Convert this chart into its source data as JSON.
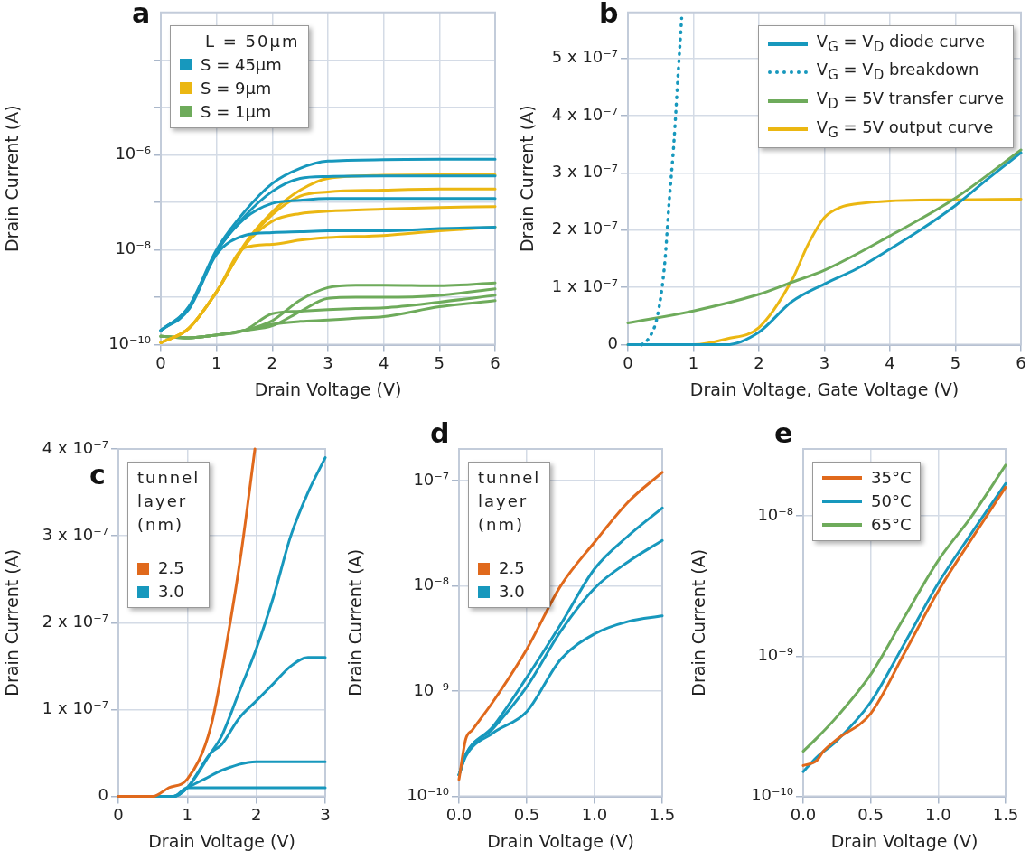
{
  "chart_data": [
    {
      "type": "line",
      "title": "a",
      "xlabel": "Drain Voltage (V)",
      "ylabel": "Drain Current (A)",
      "log": "y",
      "grid": true,
      "legend": "top left",
      "legend_title": "L = 50µm",
      "xlim": [
        0,
        6
      ],
      "xticks": [
        0,
        1,
        2,
        3,
        4,
        5,
        6
      ],
      "ylim": [
        1e-10,
        0.001
      ],
      "yticks": [
        {
          "value": 1e-10,
          "label": "10⁻¹⁰"
        },
        {
          "value": 1e-09,
          "label": null
        },
        {
          "value": 1e-08,
          "label": "10⁻⁸"
        },
        {
          "value": 1e-07,
          "label": null
        },
        {
          "value": 1e-06,
          "label": "10⁻⁶"
        },
        {
          "value": 1e-05,
          "label": null
        },
        {
          "value": 0.0001,
          "label": null
        }
      ],
      "series": [
        {
          "name": "S = 45µm",
          "color": "#1798bd",
          "x": [
            0,
            0.5,
            1,
            1.5,
            2,
            2.5,
            3,
            4,
            5,
            6
          ],
          "values": [
            2e-10,
            6.3e-10,
            1e-08,
            6.3e-08,
            2.5e-07,
            5.2e-07,
            7.4e-07,
            7.9e-07,
            8.1e-07,
            8.1e-07
          ]
        },
        {
          "color": "#1798bd",
          "x": [
            0,
            0.5,
            1,
            1.5,
            2,
            2.5,
            3,
            4,
            5,
            6
          ],
          "values": [
            2e-10,
            6e-10,
            9e-09,
            5e-08,
            1.7e-07,
            3.2e-07,
            3.5e-07,
            3.6e-07,
            3.6e-07,
            3.6e-07
          ]
        },
        {
          "color": "#1798bd",
          "x": [
            0,
            0.5,
            1,
            1.5,
            2,
            2.5,
            3,
            4,
            5,
            6
          ],
          "values": [
            2e-10,
            6e-10,
            9e-09,
            4.5e-08,
            9.5e-08,
            1.1e-07,
            1.2e-07,
            1.2e-07,
            1.2e-07,
            1.2e-07
          ]
        },
        {
          "color": "#1798bd",
          "x": [
            0,
            0.5,
            1,
            1.5,
            2,
            2.5,
            3,
            4,
            5,
            6
          ],
          "values": [
            2e-10,
            5.5e-10,
            8e-09,
            2e-08,
            2.3e-08,
            2.4e-08,
            2.5e-08,
            2.5e-08,
            2.8e-08,
            3e-08
          ]
        },
        {
          "name": "S = 9µm",
          "color": "#ebb712",
          "x": [
            0,
            0.5,
            1,
            1.5,
            2,
            2.5,
            3,
            4,
            5,
            6
          ],
          "values": [
            1.1e-10,
            2.2e-10,
            1.3e-09,
            1.3e-08,
            6.3e-08,
            1.8e-07,
            3.2e-07,
            3.7e-07,
            3.8e-07,
            3.8e-07
          ]
        },
        {
          "color": "#ebb712",
          "x": [
            0,
            0.5,
            1,
            1.5,
            2,
            2.5,
            3,
            4,
            5,
            6
          ],
          "values": [
            1.1e-10,
            2.2e-10,
            1.3e-09,
            1.2e-08,
            5.5e-08,
            1.35e-07,
            1.65e-07,
            1.8e-07,
            1.9e-07,
            1.9e-07
          ]
        },
        {
          "color": "#ebb712",
          "x": [
            0,
            0.5,
            1,
            1.5,
            2,
            2.5,
            3,
            4,
            5,
            6
          ],
          "values": [
            1.1e-10,
            2.2e-10,
            1.3e-09,
            1.2e-08,
            4e-08,
            5.8e-08,
            6.5e-08,
            7.2e-08,
            7.8e-08,
            8.1e-08
          ]
        },
        {
          "color": "#ebb712",
          "x": [
            0,
            0.5,
            1,
            1.5,
            2,
            2.5,
            3,
            4,
            5,
            6
          ],
          "values": [
            1.1e-10,
            2.2e-10,
            1.3e-09,
            1.1e-08,
            1.3e-08,
            1.6e-08,
            1.8e-08,
            2e-08,
            2.5e-08,
            3e-08
          ]
        },
        {
          "name": "S = 1µm",
          "color": "#6eab5b",
          "x": [
            0,
            0.5,
            1,
            1.5,
            2,
            2.5,
            3,
            3.5,
            4,
            5,
            6
          ],
          "values": [
            1.5e-10,
            1.4e-10,
            1.6e-10,
            2e-10,
            3.2e-10,
            8.7e-10,
            1.6e-09,
            1.8e-09,
            1.8e-09,
            1.75e-09,
            2e-09
          ]
        },
        {
          "color": "#6eab5b",
          "x": [
            0,
            0.5,
            1,
            1.5,
            2,
            2.5,
            3,
            3.5,
            4,
            5,
            6
          ],
          "values": [
            1.5e-10,
            1.4e-10,
            1.6e-10,
            2e-10,
            2.5e-10,
            5e-10,
            9.5e-10,
            1e-09,
            1e-09,
            1.1e-09,
            1.5e-09
          ]
        },
        {
          "color": "#6eab5b",
          "x": [
            0,
            0.5,
            1,
            1.5,
            2,
            2.5,
            3,
            3.5,
            4,
            5,
            6
          ],
          "values": [
            1.5e-10,
            1.4e-10,
            1.6e-10,
            2e-10,
            4.5e-10,
            5.1e-10,
            5.5e-10,
            5.8e-10,
            6e-10,
            7.9e-10,
            1.1e-09
          ]
        },
        {
          "color": "#6eab5b",
          "x": [
            0,
            0.5,
            1,
            1.5,
            2,
            2.5,
            3,
            3.5,
            4,
            5,
            6
          ],
          "values": [
            1.5e-10,
            1.4e-10,
            1.6e-10,
            2e-10,
            2.7e-10,
            3.1e-10,
            3.3e-10,
            3.6e-10,
            3.9e-10,
            6.3e-10,
            8.5e-10
          ]
        }
      ]
    },
    {
      "type": "line",
      "title": "b",
      "xlabel": "Drain Voltage, Gate Voltage (V)",
      "ylabel": "Drain Current (A)",
      "grid": true,
      "legend": "top right",
      "xlim": [
        0,
        6
      ],
      "xticks": [
        0,
        1,
        2,
        3,
        4,
        5,
        6
      ],
      "ylim": [
        0,
        5.8e-07
      ],
      "yticks": [
        0,
        {
          "value": 1e-07,
          "label": "1 x 10⁻⁷"
        },
        {
          "value": 2e-07,
          "label": "2 x 10⁻⁷"
        },
        {
          "value": 3e-07,
          "label": "3 x 10⁻⁷"
        },
        {
          "value": 4e-07,
          "label": "4 x 10⁻⁷"
        },
        {
          "value": 5e-07,
          "label": "5 x 10⁻⁷"
        }
      ],
      "series": [
        {
          "name": "V$_{G}$ = V$_{D}$ diode curve",
          "color": "#1798bd",
          "x": [
            0,
            1,
            1.5,
            2,
            2.5,
            3,
            3.5,
            4,
            4.5,
            5,
            5.5,
            6
          ],
          "values": [
            0,
            0,
            0,
            2.2e-08,
            7.5e-08,
            1.06e-07,
            1.33e-07,
            1.67e-07,
            2.03e-07,
            2.43e-07,
            2.9e-07,
            3.35e-07
          ]
        },
        {
          "name": "V$_{G}$ = V$_{D}$  breakdown",
          "color": "#1798bd",
          "line_style": "dotted",
          "x": [
            0.21,
            0.31,
            0.45,
            0.56,
            0.63,
            0.7,
            0.77,
            0.82
          ],
          "values": [
            0,
            1e-08,
            5e-08,
            1.4e-07,
            2.5e-07,
            3.5e-07,
            4.8e-07,
            5.7e-07
          ]
        },
        {
          "name": "V$_{D}$ = 5V transfer curve",
          "color": "#6eab5b",
          "x": [
            0,
            1,
            2,
            2.5,
            3,
            4,
            5,
            6
          ],
          "values": [
            3.8e-08,
            5.9e-08,
            8.8e-08,
            1.09e-07,
            1.3e-07,
            1.9e-07,
            2.56e-07,
            3.4e-07
          ]
        },
        {
          "name": "V$_{G}$ = 5V output curve",
          "color": "#ebb712",
          "x": [
            0,
            1,
            1.5,
            2,
            2.5,
            2.75,
            3,
            3.25,
            3.5,
            4,
            5,
            6
          ],
          "values": [
            0,
            0,
            1e-08,
            3e-08,
            1.12e-07,
            1.75e-07,
            2.22e-07,
            2.4e-07,
            2.46e-07,
            2.51e-07,
            2.53e-07,
            2.54e-07
          ]
        }
      ]
    },
    {
      "type": "line",
      "title": "c",
      "xlabel": "Drain Voltage (V)",
      "ylabel": "Drain Current (A)",
      "grid": true,
      "legend": "top left",
      "legend_title": "tunnel\nlayer\n(nm)",
      "xlim": [
        0,
        3
      ],
      "xticks": [
        0,
        1,
        2,
        3
      ],
      "ylim": [
        0,
        4e-07
      ],
      "yticks": [
        0,
        {
          "value": 1e-07,
          "label": "1 x 10⁻⁷"
        },
        {
          "value": 2e-07,
          "label": "2 x 10⁻⁷"
        },
        {
          "value": 3e-07,
          "label": "3 x 10⁻⁷"
        },
        {
          "value": 4e-07,
          "label": "4 x 10⁻⁷"
        }
      ],
      "series": [
        {
          "name": "2.5",
          "color": "#e0691c",
          "x": [
            0,
            0.5,
            0.73,
            1,
            1.34,
            1.6,
            1.78,
            1.98
          ],
          "values": [
            0,
            0,
            1e-08,
            2e-08,
            8e-08,
            1.9e-07,
            2.8e-07,
            4e-07
          ]
        },
        {
          "name": "3.0",
          "color": "#1798bd",
          "x": [
            0,
            0.5,
            0.8,
            1,
            1.34,
            1.5,
            1.75,
            2,
            2.25,
            2.5,
            2.75,
            3
          ],
          "values": [
            0,
            0,
            0,
            1e-08,
            5e-08,
            7e-08,
            1.2e-07,
            1.7e-07,
            2.3e-07,
            3e-07,
            3.5e-07,
            3.9e-07
          ]
        },
        {
          "color": "#1798bd",
          "x": [
            0,
            0.5,
            0.8,
            1,
            1.34,
            1.5,
            1.75,
            2,
            2.25,
            2.5,
            2.75,
            3
          ],
          "values": [
            0,
            0,
            0,
            1e-08,
            5e-08,
            6e-08,
            9e-08,
            1.1e-07,
            1.3e-07,
            1.5e-07,
            1.6e-07,
            1.6e-07
          ]
        },
        {
          "color": "#1798bd",
          "x": [
            0,
            0.5,
            0.8,
            1,
            1.25,
            1.5,
            2,
            2.5,
            3
          ],
          "values": [
            0,
            0,
            0,
            1e-08,
            2e-08,
            3e-08,
            4e-08,
            4e-08,
            4e-08
          ]
        },
        {
          "color": "#1798bd",
          "x": [
            0,
            0.5,
            0.8,
            1,
            1.5,
            2,
            3
          ],
          "values": [
            0,
            0,
            0,
            1e-08,
            1e-08,
            1e-08,
            1e-08
          ]
        }
      ]
    },
    {
      "type": "line",
      "title": "d",
      "xlabel": "Drain Voltage (V)",
      "ylabel": "Drain Current (A)",
      "log": "y",
      "grid": true,
      "legend": "top left",
      "legend_title": "tunnel\nlayer\n(nm)",
      "xlim": [
        0,
        1.5
      ],
      "xticks": [
        {
          "value": 0,
          "label": "0.0"
        },
        {
          "value": 0.5,
          "label": "0.5"
        },
        {
          "value": 1,
          "label": "1.0"
        },
        {
          "value": 1.5,
          "label": "1.5"
        }
      ],
      "ylim": [
        1e-10,
        2e-07
      ],
      "yticks": [
        {
          "value": 1e-10,
          "label": "10⁻¹⁰"
        },
        {
          "value": 1e-09,
          "label": "10⁻⁹"
        },
        {
          "value": 1e-08,
          "label": "10⁻⁸"
        },
        {
          "value": 1e-07,
          "label": "10⁻⁷"
        }
      ],
      "series": [
        {
          "name": "2.5",
          "color": "#e0691c",
          "x": [
            0,
            0.05,
            0.1,
            0.25,
            0.5,
            0.75,
            1,
            1.25,
            1.5
          ],
          "values": [
            1.45e-10,
            3.5e-10,
            4.3e-10,
            7.9e-10,
            2.5e-09,
            1e-08,
            2.6e-08,
            6.3e-08,
            1.2e-07
          ]
        },
        {
          "name": "3.0",
          "color": "#1798bd",
          "x": [
            0,
            0.05,
            0.25,
            0.5,
            0.75,
            1,
            1.25,
            1.5
          ],
          "values": [
            1.6e-10,
            2.5e-10,
            4.6e-10,
            1.35e-09,
            4.3e-09,
            1.45e-08,
            3e-08,
            5.5e-08
          ]
        },
        {
          "color": "#1798bd",
          "x": [
            0,
            0.05,
            0.25,
            0.5,
            0.75,
            1,
            1.25,
            1.5
          ],
          "values": [
            1.6e-10,
            2.5e-10,
            4.4e-10,
            1.1e-09,
            3.7e-09,
            9.5e-09,
            1.7e-08,
            2.7e-08
          ]
        },
        {
          "color": "#1798bd",
          "x": [
            0,
            0.05,
            0.25,
            0.5,
            0.75,
            1,
            1.25,
            1.5
          ],
          "values": [
            1.6e-10,
            2.4e-10,
            4e-10,
            6.4e-10,
            2e-09,
            3.5e-09,
            4.6e-09,
            5.2e-09
          ]
        }
      ]
    },
    {
      "type": "line",
      "title": "e",
      "xlabel": "Drain Voltage (V)",
      "ylabel": "Drain Current (A)",
      "log": "y",
      "grid": true,
      "legend": "top left",
      "xlim": [
        0,
        1.5
      ],
      "xticks": [
        {
          "value": 0,
          "label": "0.0"
        },
        {
          "value": 0.5,
          "label": "0.5"
        },
        {
          "value": 1,
          "label": "1.0"
        },
        {
          "value": 1.5,
          "label": "1.5"
        }
      ],
      "ylim": [
        1e-10,
        3e-08
      ],
      "yticks": [
        {
          "value": 1e-10,
          "label": "10⁻¹⁰"
        },
        {
          "value": 1e-09,
          "label": "10⁻⁹"
        },
        {
          "value": 1e-08,
          "label": "10⁻⁸"
        }
      ],
      "series": [
        {
          "name": "35°C",
          "color": "#e0691c",
          "x": [
            0,
            0.1,
            0.15,
            0.25,
            0.5,
            0.75,
            1,
            1.25,
            1.5
          ],
          "values": [
            1.66e-10,
            1.8e-10,
            2.1e-10,
            2.55e-10,
            3.9e-10,
            1.05e-09,
            2.9e-09,
            6.9e-09,
            1.6e-08
          ]
        },
        {
          "name": "50°C",
          "color": "#1798bd",
          "x": [
            0,
            0.1,
            0.25,
            0.5,
            0.75,
            1,
            1.25,
            1.5
          ],
          "values": [
            1.5e-10,
            1.9e-10,
            2.5e-10,
            4.7e-10,
            1.23e-09,
            3.3e-09,
            7.6e-09,
            1.7e-08
          ]
        },
        {
          "name": "65°C",
          "color": "#6eab5b",
          "x": [
            0,
            0.1,
            0.25,
            0.5,
            0.75,
            1,
            1.25,
            1.5
          ],
          "values": [
            2.1e-10,
            2.6e-10,
            3.7e-10,
            7.4e-10,
            1.9e-09,
            4.8e-09,
            1e-08,
            2.3e-08
          ]
        }
      ]
    }
  ]
}
